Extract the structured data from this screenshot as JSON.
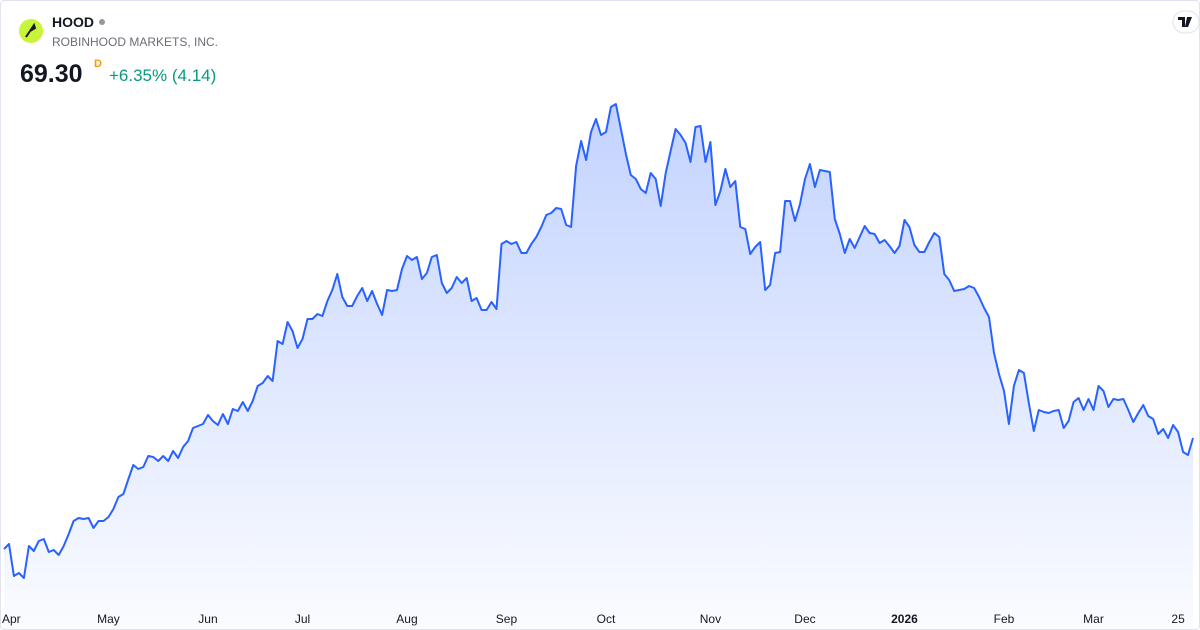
{
  "chart_data": {
    "type": "area",
    "title": "HOOD",
    "subtitle": "ROBINHOOD MARKETS, INC.",
    "price": "69.30",
    "interval": "D",
    "change": "+6.35% (4.14)",
    "color": "#2962ff",
    "xlim": [
      0,
      239
    ],
    "ylim": [
      28.55,
      163.55
    ],
    "xticks": [
      {
        "value": 0,
        "label": "Apr"
      },
      {
        "value": 21,
        "label": "May"
      },
      {
        "value": 41,
        "label": "Jun"
      },
      {
        "value": 60,
        "label": "Jul"
      },
      {
        "value": 81,
        "label": "Aug"
      },
      {
        "value": 101,
        "label": "Sep"
      },
      {
        "value": 121,
        "label": "Oct"
      },
      {
        "value": 142,
        "label": "Nov"
      },
      {
        "value": 161,
        "label": "Dec"
      },
      {
        "value": 181,
        "label": "2026"
      },
      {
        "value": 201,
        "label": "Feb"
      },
      {
        "value": 219,
        "label": "Mar"
      },
      {
        "value": 236,
        "label": "25"
      }
    ],
    "values": [
      41.55,
      42.8,
      34.8,
      35.55,
      34.3,
      42.3,
      41.05,
      43.55,
      44.05,
      40.8,
      41.3,
      40.05,
      42.3,
      45.3,
      48.55,
      49.3,
      49.05,
      49.3,
      46.8,
      48.55,
      48.55,
      49.55,
      51.55,
      54.55,
      55.3,
      59.05,
      62.55,
      61.55,
      62.05,
      64.8,
      64.55,
      63.55,
      64.8,
      63.55,
      66.05,
      64.3,
      67.05,
      68.55,
      71.8,
      72.3,
      72.8,
      75.05,
      73.55,
      72.55,
      75.3,
      72.8,
      76.55,
      76.05,
      78.3,
      76.05,
      78.55,
      82.3,
      83.05,
      84.8,
      83.55,
      93.55,
      92.8,
      98.3,
      96.05,
      91.8,
      94.05,
      99.05,
      99.05,
      100.3,
      99.8,
      103.55,
      106.3,
      110.3,
      104.55,
      102.3,
      102.3,
      104.8,
      106.8,
      103.55,
      106.05,
      102.8,
      100.05,
      106.3,
      106.05,
      106.3,
      111.55,
      114.8,
      113.8,
      114.55,
      109.05,
      110.55,
      114.55,
      115.05,
      108.05,
      105.55,
      106.8,
      109.55,
      108.05,
      109.3,
      103.55,
      104.3,
      101.3,
      101.3,
      103.3,
      101.55,
      117.8,
      118.55,
      117.8,
      118.3,
      115.55,
      115.55,
      117.8,
      119.55,
      122.05,
      125.05,
      125.55,
      126.8,
      126.55,
      122.55,
      122.05,
      137.3,
      143.55,
      138.8,
      145.8,
      149.05,
      145.05,
      145.8,
      152.05,
      152.8,
      146.55,
      140.3,
      135.05,
      134.05,
      131.55,
      130.55,
      135.55,
      134.05,
      127.3,
      135.55,
      141.05,
      146.55,
      145.05,
      143.05,
      138.3,
      147.05,
      147.3,
      138.3,
      143.3,
      127.55,
      131.05,
      136.55,
      132.05,
      133.55,
      122.05,
      121.55,
      115.3,
      117.05,
      118.3,
      106.3,
      107.55,
      115.55,
      115.8,
      128.55,
      128.55,
      123.55,
      127.8,
      134.05,
      137.8,
      132.05,
      136.3,
      136.05,
      135.8,
      124.05,
      120.3,
      115.55,
      119.05,
      116.8,
      119.55,
      122.3,
      120.55,
      120.3,
      118.05,
      118.8,
      117.3,
      115.55,
      117.3,
      123.8,
      122.05,
      117.55,
      115.8,
      115.8,
      118.3,
      120.55,
      119.55,
      110.3,
      108.8,
      106.05,
      106.3,
      106.55,
      107.3,
      106.8,
      104.55,
      101.8,
      99.55,
      90.55,
      85.3,
      81.05,
      72.8,
      82.3,
      86.3,
      85.55,
      78.05,
      71.05,
      76.3,
      75.8,
      75.55,
      76.05,
      76.3,
      71.8,
      73.55,
      78.3,
      79.3,
      76.3,
      79.05,
      76.3,
      82.3,
      81.05,
      77.05,
      79.05,
      78.8,
      79.05,
      76.3,
      73.3,
      75.55,
      77.55,
      74.8,
      74.05,
      70.3,
      71.55,
      69.3,
      72.55,
      70.8,
      65.8,
      65.05,
      69.3
    ]
  }
}
